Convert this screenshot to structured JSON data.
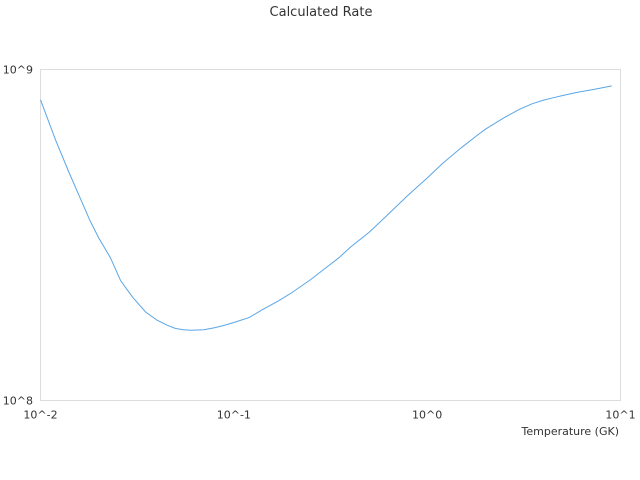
{
  "chart_data": {
    "type": "line",
    "title": "Calculated Rate",
    "xlabel": "Temperature (GK)",
    "ylabel": "",
    "xscale": "log",
    "yscale": "log",
    "xlim": [
      0.01,
      10
    ],
    "ylim": [
      100000000,
      1000000000
    ],
    "x_tick_labels": [
      "10^-2",
      "10^-1",
      "10^0",
      "10^1"
    ],
    "y_tick_labels": [
      "10^8",
      "10^9"
    ],
    "grid": false,
    "series": [
      {
        "color": "#5aa6e6",
        "x": [
          0.01,
          0.012,
          0.014,
          0.016,
          0.018,
          0.02,
          0.023,
          0.026,
          0.03,
          0.035,
          0.04,
          0.045,
          0.05,
          0.055,
          0.06,
          0.07,
          0.08,
          0.09,
          0.1,
          0.12,
          0.14,
          0.17,
          0.2,
          0.25,
          0.3,
          0.35,
          0.4,
          0.5,
          0.6,
          0.7,
          0.8,
          1.0,
          1.2,
          1.5,
          1.8,
          2.0,
          2.5,
          3.0,
          3.5,
          4.0,
          4.5,
          5.0,
          6.0,
          7.0,
          8.0,
          9.0
        ],
        "y": [
          810000000,
          610000000,
          490000000,
          410000000,
          350000000,
          310000000,
          270000000,
          230000000,
          205000000,
          185000000,
          175000000,
          169000000,
          165000000,
          163500000,
          163000000,
          163500000,
          166000000,
          169000000,
          172000000,
          178000000,
          188000000,
          200000000,
          212000000,
          232000000,
          252000000,
          270000000,
          290000000,
          322000000,
          356000000,
          388000000,
          418000000,
          470000000,
          520000000,
          580000000,
          630000000,
          660000000,
          715000000,
          758000000,
          788000000,
          808000000,
          822000000,
          834000000,
          854000000,
          867000000,
          880000000,
          892000000
        ]
      }
    ]
  }
}
